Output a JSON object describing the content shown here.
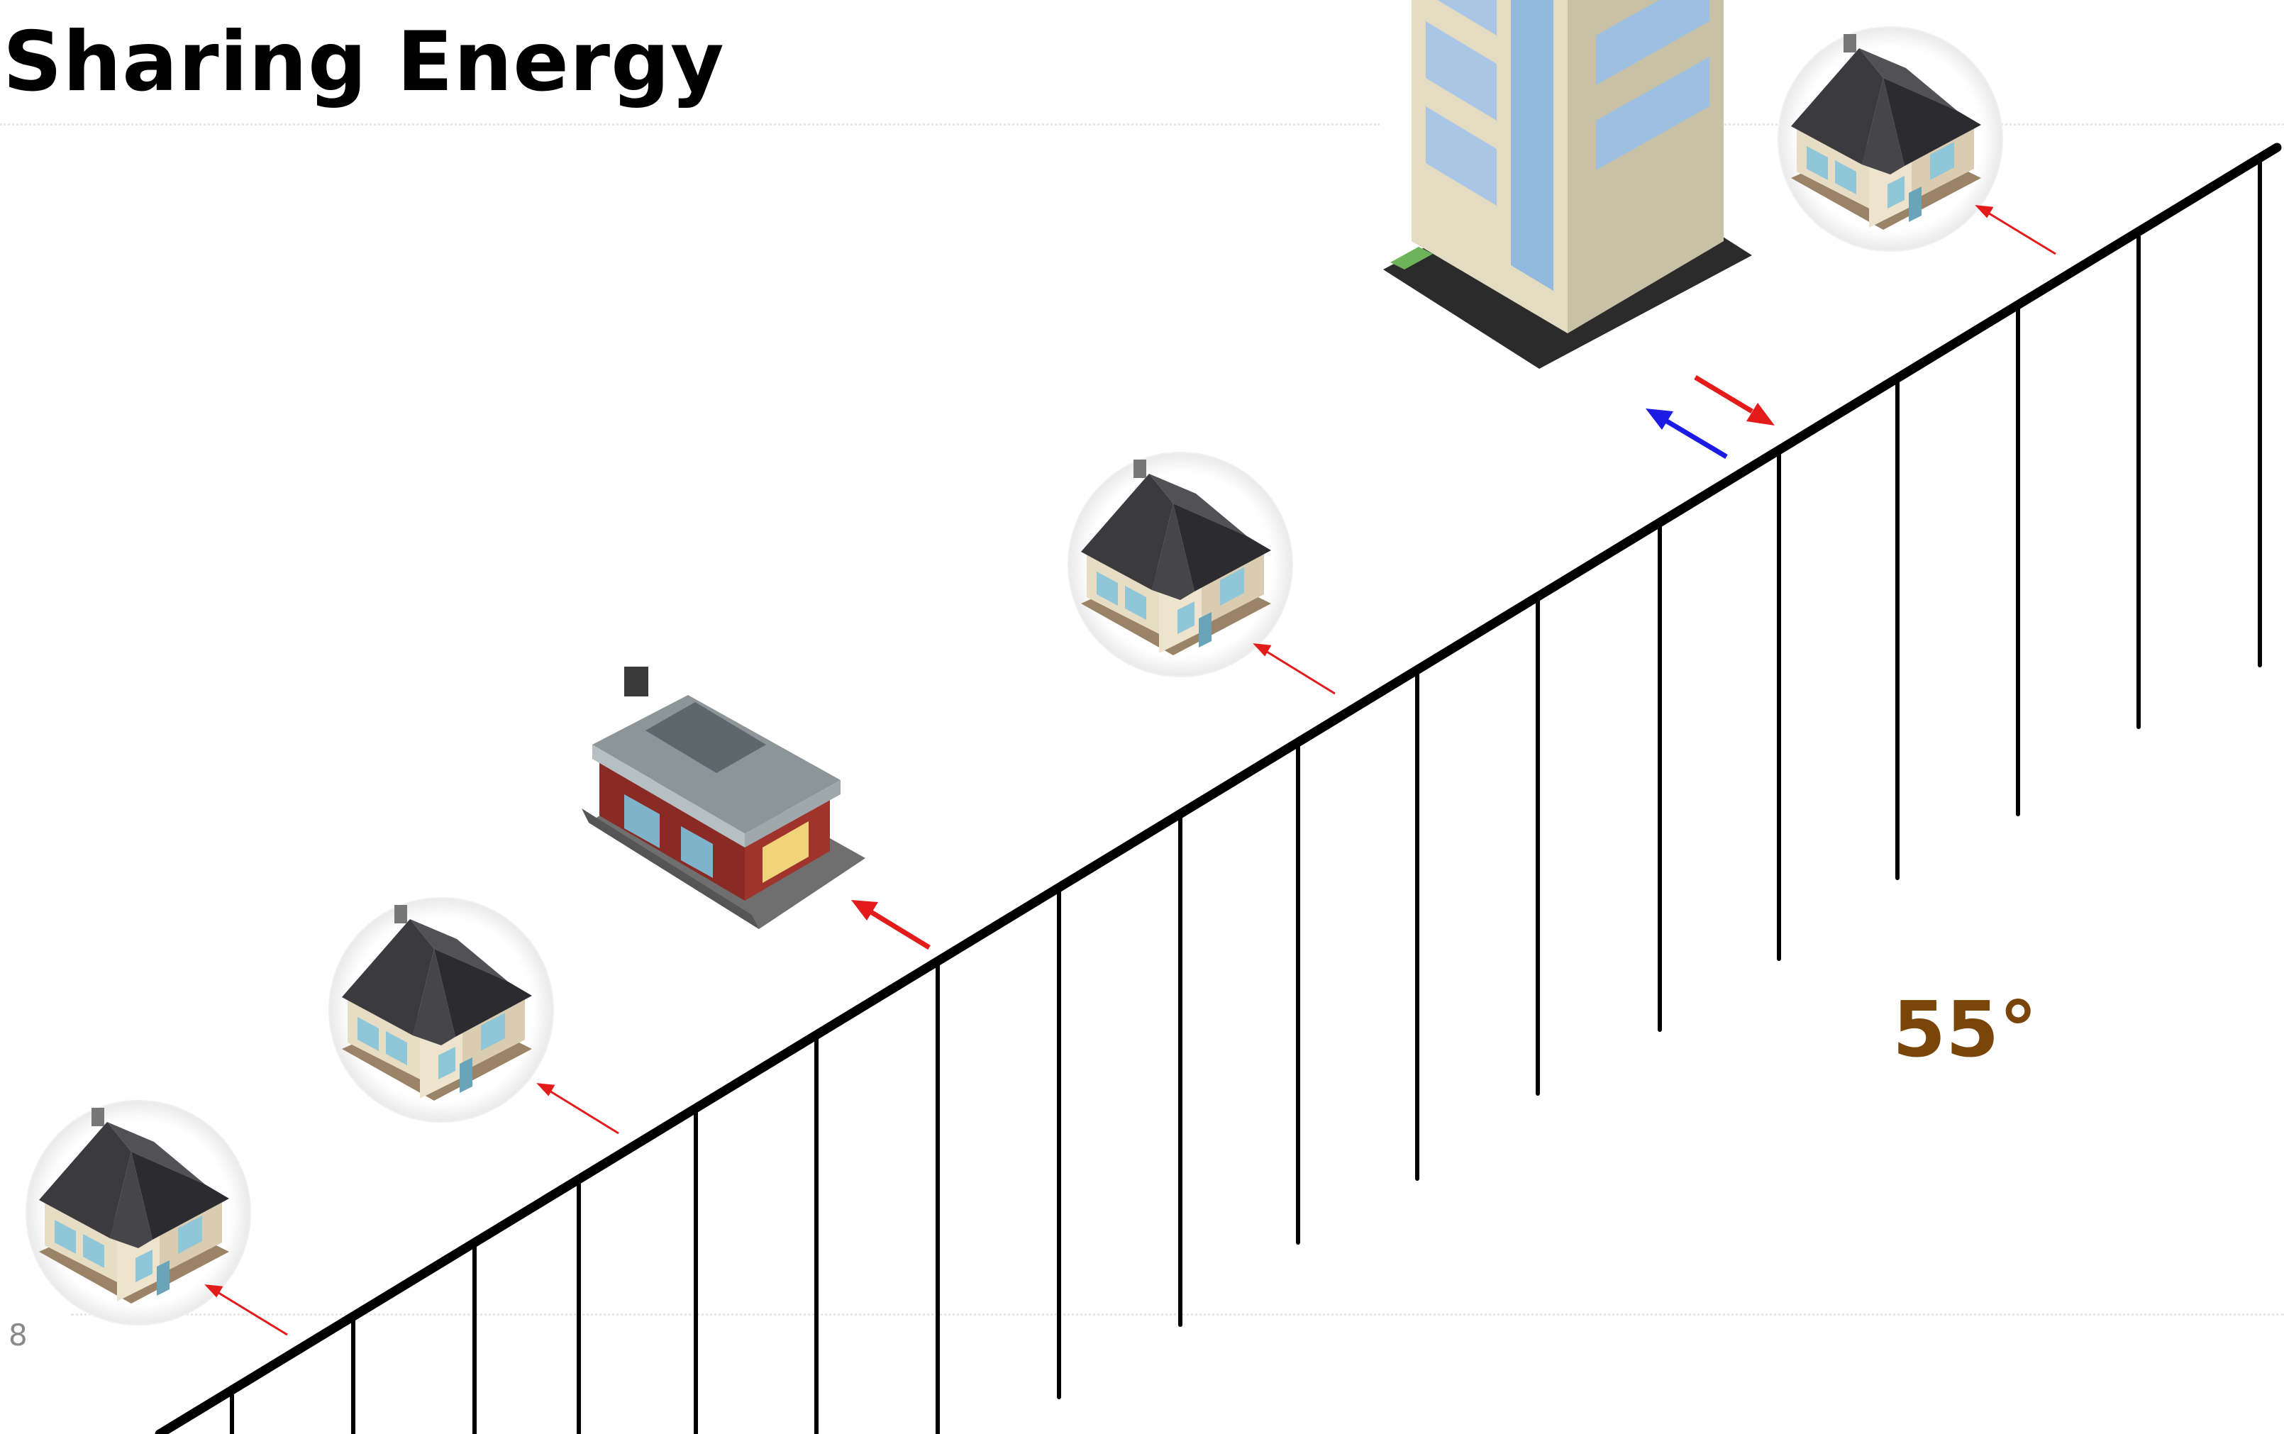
{
  "slide": {
    "title": "Sharing Energy",
    "page_number": "8",
    "temperature": "55°"
  },
  "colors": {
    "grid_line": "#000000",
    "export_arrow": "#e31b1b",
    "import_arrow": "#1b1be3",
    "temperature_text": "#7a4508"
  },
  "icons": {
    "house": "house-icon",
    "shop": "shop-building-icon",
    "tower": "office-tower-icon"
  }
}
